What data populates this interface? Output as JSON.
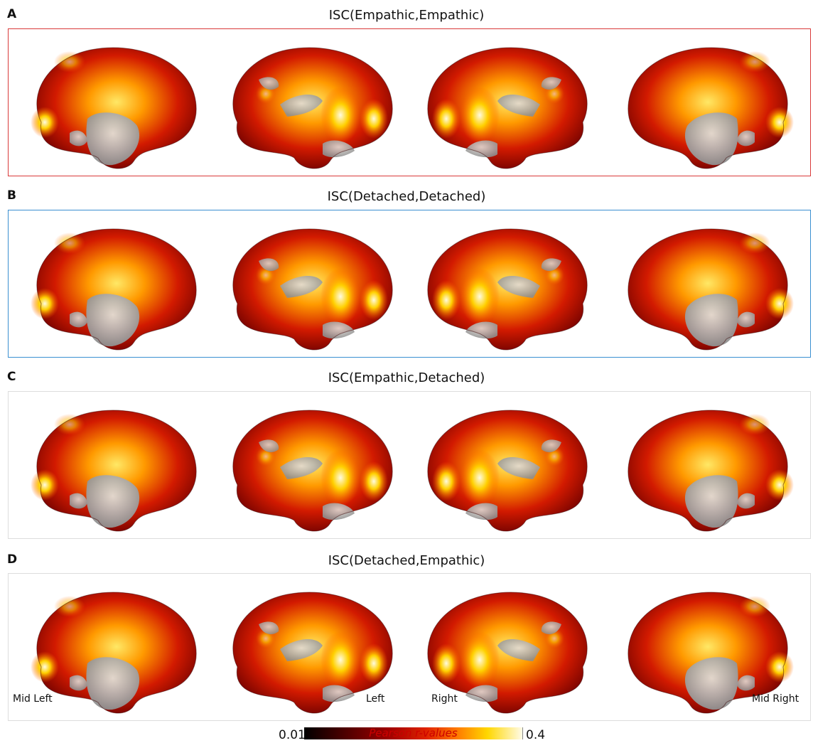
{
  "panels": [
    {
      "letter": "A",
      "title": "ISC(Empathic,Empathic)",
      "border": "#d93a3a"
    },
    {
      "letter": "B",
      "title": "ISC(Detached,Detached)",
      "border": "#3a8fd1"
    },
    {
      "letter": "C",
      "title": "ISC(Empathic,Detached)",
      "border": "#dddddd"
    },
    {
      "letter": "D",
      "title": "ISC(Detached,Empathic)",
      "border": "#dddddd"
    }
  ],
  "view_labels": {
    "mid_left": "Mid Left",
    "left": "Left",
    "right": "Right",
    "mid_right": "Mid Right"
  },
  "colorbar": {
    "min": "0.01",
    "max": "0.4",
    "label": "Pearson r-values"
  },
  "icons": [
    "brain-surface-icon"
  ],
  "colors": {
    "colormap_low": "#000000",
    "colormap_mid": "#e02200",
    "colormap_high": "#fffbe8",
    "cortex_gray": "#b3b3b3"
  }
}
